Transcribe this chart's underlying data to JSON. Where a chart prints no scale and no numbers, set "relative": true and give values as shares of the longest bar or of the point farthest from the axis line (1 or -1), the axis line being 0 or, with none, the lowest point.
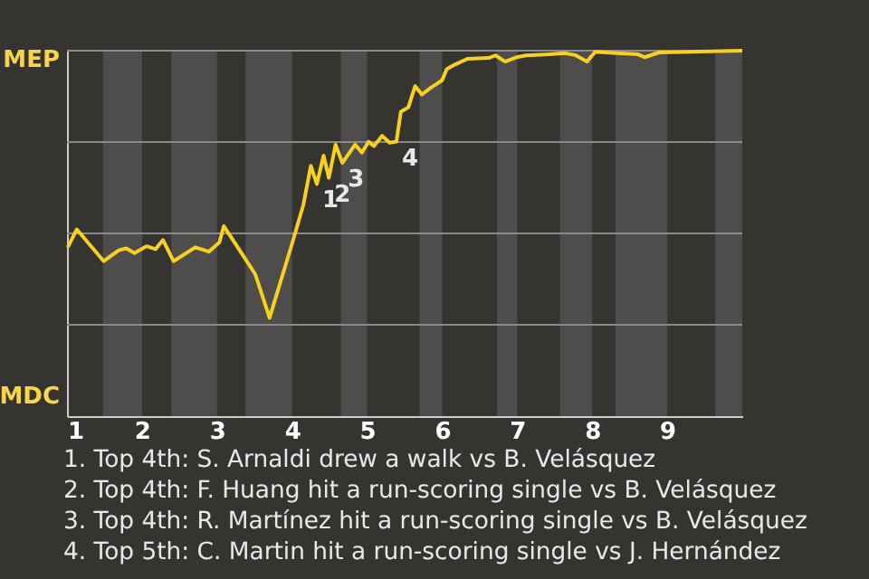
{
  "chart_data": {
    "type": "line",
    "relative": true,
    "x": [
      1.01,
      1.13,
      1.49,
      1.69,
      1.79,
      1.9,
      2.06,
      2.18,
      2.28,
      2.42,
      2.71,
      2.89,
      3.03,
      3.09,
      3.38,
      3.51,
      3.7,
      4.01,
      4.15,
      4.25,
      4.33,
      4.42,
      4.49,
      4.58,
      4.67,
      4.84,
      4.93,
      5.02,
      5.09,
      5.2,
      5.3,
      5.39,
      5.45,
      5.55,
      5.64,
      5.73,
      5.85,
      6.0,
      6.06,
      6.17,
      6.34,
      6.62,
      6.71,
      6.84,
      6.99,
      7.12,
      7.43,
      7.63,
      7.77,
      7.93,
      8.04,
      8.33,
      8.61,
      8.7,
      8.89,
      10.0
    ],
    "series": [
      {
        "color": "#f7d11e",
        "values": [
          0.462,
          0.511,
          0.424,
          0.454,
          0.459,
          0.446,
          0.465,
          0.457,
          0.482,
          0.424,
          0.462,
          0.45,
          0.475,
          0.52,
          0.429,
          0.388,
          0.269,
          0.479,
          0.578,
          0.685,
          0.635,
          0.713,
          0.652,
          0.743,
          0.693,
          0.743,
          0.721,
          0.751,
          0.739,
          0.767,
          0.748,
          0.751,
          0.833,
          0.845,
          0.903,
          0.88,
          0.899,
          0.919,
          0.949,
          0.962,
          0.978,
          0.98,
          0.987,
          0.97,
          0.982,
          0.987,
          0.99,
          0.993,
          0.988,
          0.97,
          0.997,
          0.993,
          0.99,
          0.982,
          0.995,
          1.0
        ]
      }
    ],
    "xlim": [
      1,
      10
    ],
    "xticks": [
      1,
      2,
      3,
      4,
      5,
      6,
      7,
      8,
      9
    ],
    "ref_lines": [
      {
        "axis": "y",
        "value": 0.25,
        "color": "#8a8a8a"
      },
      {
        "axis": "y",
        "value": 0.5,
        "color": "#8a8a8a"
      },
      {
        "axis": "y",
        "value": 0.75,
        "color": "#8a8a8a"
      },
      {
        "axis": "y",
        "value": 1,
        "color": "#8a8a8a"
      }
    ],
    "marker": "none",
    "line_style": "solid",
    "bands": [
      {
        "axis": "x",
        "from": 1.48,
        "to": 2,
        "color": "#4e4d4b"
      },
      {
        "axis": "x",
        "from": 2.39,
        "to": 3,
        "color": "#4e4d4b"
      },
      {
        "axis": "x",
        "from": 3.38,
        "to": 4,
        "color": "#4e4d4b"
      },
      {
        "axis": "x",
        "from": 4.65,
        "to": 5,
        "color": "#4e4d4b"
      },
      {
        "axis": "x",
        "from": 5.7,
        "to": 6,
        "color": "#4e4d4b"
      },
      {
        "axis": "x",
        "from": 6.73,
        "to": 7,
        "color": "#4e4d4b"
      },
      {
        "axis": "x",
        "from": 7.57,
        "to": 8,
        "color": "#4e4d4b"
      },
      {
        "axis": "x",
        "from": 8.31,
        "to": 9,
        "color": "#4e4d4b"
      },
      {
        "axis": "x",
        "from": 9.64,
        "to": 10,
        "color": "#4e4d4b"
      }
    ],
    "annotations": [
      "MEP",
      "MDC",
      {
        "text": "1",
        "x": 4.33,
        "y": 0.635
      },
      {
        "text": "2",
        "x": 4.49,
        "y": 0.652
      },
      {
        "text": "3",
        "x": 4.67,
        "y": 0.693
      },
      {
        "text": "4",
        "x": 5.39,
        "y": 0.751
      },
      "1. Top 4th: S. Arnaldi drew a walk vs B. Velásquez",
      "2. Top 4th: F. Huang hit a run-scoring single vs B. Velásquez",
      "3. Top 4th: R. Martínez hit a run-scoring single vs B. Velásquez",
      "4. Top 5th: C. Martin hit a run-scoring single vs J. Hernández"
    ]
  }
}
